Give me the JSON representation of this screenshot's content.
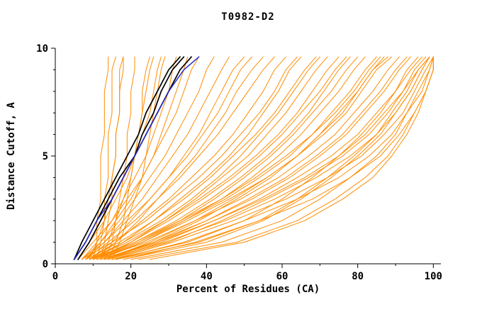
{
  "chart_data": {
    "type": "line",
    "title": "T0982-D2",
    "xlabel": "Percent of Residues (CA)",
    "ylabel": "Distance Cutoff, A",
    "xlim": [
      0,
      100
    ],
    "ylim": [
      0,
      10
    ],
    "x_ticks": [
      0,
      20,
      40,
      60,
      80,
      100
    ],
    "x_minor_step": 10,
    "y_ticks": [
      0,
      5,
      10
    ],
    "y_minor_step": 1,
    "grid": false,
    "legend_position": "none",
    "line_colors": {
      "orange": "#FF8C00",
      "black": "#000000",
      "blue": "#2A2AC8"
    },
    "y_levels": [
      0.2,
      1,
      2,
      3,
      4,
      5,
      6,
      7,
      8,
      9,
      9.6
    ],
    "series": [
      {
        "color": "orange",
        "x": [
          10,
          11,
          11,
          12,
          12,
          12,
          13,
          13,
          13,
          14,
          14
        ]
      },
      {
        "color": "orange",
        "x": [
          11,
          12,
          13,
          13,
          14,
          14,
          14,
          15,
          15,
          15,
          16
        ]
      },
      {
        "color": "orange",
        "x": [
          12,
          13,
          14,
          15,
          15,
          16,
          16,
          17,
          17,
          17,
          18
        ]
      },
      {
        "color": "orange",
        "x": [
          9,
          11,
          13,
          14,
          15,
          16,
          16,
          17,
          17,
          18,
          18
        ]
      },
      {
        "color": "orange",
        "x": [
          13,
          15,
          16,
          17,
          18,
          19,
          19,
          20,
          20,
          21,
          21
        ]
      },
      {
        "color": "orange",
        "x": [
          14,
          16,
          18,
          19,
          20,
          21,
          22,
          23,
          23,
          24,
          25
        ]
      },
      {
        "color": "orange",
        "x": [
          12,
          14,
          16,
          18,
          20,
          21,
          22,
          23,
          24,
          25,
          26
        ]
      },
      {
        "color": "orange",
        "x": [
          15,
          17,
          19,
          21,
          23,
          24,
          25,
          26,
          27,
          28,
          29
        ]
      },
      {
        "color": "orange",
        "x": [
          6,
          9,
          13,
          16,
          19,
          21,
          23,
          25,
          26,
          27,
          28
        ]
      },
      {
        "color": "orange",
        "x": [
          7,
          11,
          15,
          18,
          21,
          24,
          26,
          28,
          30,
          31,
          32
        ]
      },
      {
        "color": "orange",
        "x": [
          8,
          12,
          16,
          20,
          23,
          26,
          28,
          30,
          32,
          34,
          35
        ]
      },
      {
        "color": "orange",
        "x": [
          6,
          10,
          15,
          19,
          23,
          26,
          29,
          32,
          34,
          36,
          38
        ]
      },
      {
        "color": "orange",
        "x": [
          7,
          12,
          17,
          21,
          25,
          29,
          32,
          35,
          38,
          40,
          42
        ]
      },
      {
        "color": "orange",
        "x": [
          8,
          13,
          18,
          23,
          27,
          31,
          35,
          38,
          41,
          44,
          46
        ]
      },
      {
        "color": "orange",
        "x": [
          9,
          15,
          20,
          25,
          30,
          34,
          38,
          41,
          44,
          47,
          50
        ]
      },
      {
        "color": "orange",
        "x": [
          7,
          13,
          19,
          25,
          30,
          35,
          39,
          43,
          46,
          49,
          52
        ]
      },
      {
        "color": "orange",
        "x": [
          10,
          16,
          22,
          27,
          32,
          37,
          41,
          45,
          48,
          52,
          55
        ]
      },
      {
        "color": "orange",
        "x": [
          8,
          14,
          21,
          27,
          33,
          38,
          43,
          47,
          51,
          55,
          58
        ]
      },
      {
        "color": "orange",
        "x": [
          9,
          16,
          23,
          30,
          36,
          42,
          47,
          51,
          55,
          58,
          61
        ]
      },
      {
        "color": "orange",
        "x": [
          10,
          18,
          26,
          33,
          40,
          46,
          51,
          55,
          59,
          62,
          65
        ]
      },
      {
        "color": "orange",
        "x": [
          8,
          17,
          26,
          34,
          41,
          47,
          53,
          58,
          62,
          66,
          69
        ]
      },
      {
        "color": "orange",
        "x": [
          11,
          20,
          29,
          37,
          44,
          51,
          56,
          61,
          65,
          69,
          72
        ]
      },
      {
        "color": "orange",
        "x": [
          9,
          19,
          29,
          38,
          46,
          53,
          59,
          64,
          68,
          72,
          75
        ]
      },
      {
        "color": "orange",
        "x": [
          10,
          21,
          32,
          41,
          49,
          56,
          62,
          67,
          71,
          75,
          78
        ]
      },
      {
        "color": "orange",
        "x": [
          12,
          23,
          34,
          44,
          52,
          59,
          65,
          70,
          75,
          79,
          82
        ]
      },
      {
        "color": "orange",
        "x": [
          10,
          22,
          34,
          45,
          54,
          62,
          68,
          73,
          78,
          82,
          85
        ]
      },
      {
        "color": "orange",
        "x": [
          13,
          25,
          37,
          47,
          56,
          64,
          70,
          76,
          80,
          84,
          88
        ]
      },
      {
        "color": "orange",
        "x": [
          11,
          24,
          37,
          49,
          59,
          67,
          74,
          79,
          84,
          88,
          91
        ]
      },
      {
        "color": "orange",
        "x": [
          12,
          26,
          40,
          52,
          62,
          70,
          77,
          82,
          87,
          91,
          94
        ]
      },
      {
        "color": "orange",
        "x": [
          14,
          28,
          42,
          54,
          64,
          73,
          80,
          85,
          90,
          93,
          96
        ]
      },
      {
        "color": "orange",
        "x": [
          12,
          27,
          42,
          55,
          66,
          75,
          82,
          87,
          92,
          95,
          98
        ]
      },
      {
        "color": "orange",
        "x": [
          13,
          29,
          45,
          58,
          69,
          78,
          85,
          90,
          94,
          97,
          99
        ]
      },
      {
        "color": "orange",
        "x": [
          15,
          31,
          47,
          61,
          72,
          81,
          87,
          92,
          95,
          98,
          100
        ]
      },
      {
        "color": "orange",
        "x": [
          16,
          34,
          50,
          64,
          75,
          83,
          89,
          93,
          97,
          99,
          100
        ]
      },
      {
        "color": "orange",
        "x": [
          18,
          37,
          54,
          68,
          78,
          86,
          91,
          95,
          98,
          100,
          100
        ]
      },
      {
        "color": "orange",
        "x": [
          15,
          35,
          50,
          60,
          68,
          75,
          81,
          86,
          90,
          94,
          97
        ]
      },
      {
        "color": "orange",
        "x": [
          18,
          40,
          55,
          65,
          73,
          80,
          86,
          90,
          94,
          97,
          99
        ]
      },
      {
        "color": "orange",
        "x": [
          20,
          44,
          60,
          70,
          78,
          85,
          90,
          93,
          96,
          99,
          100
        ]
      },
      {
        "color": "orange",
        "x": [
          22,
          48,
          64,
          74,
          82,
          88,
          92,
          95,
          98,
          100,
          100
        ]
      },
      {
        "color": "orange",
        "x": [
          16,
          38,
          54,
          64,
          72,
          79,
          85,
          89,
          93,
          96,
          99
        ]
      },
      {
        "color": "orange",
        "x": [
          25,
          50,
          66,
          76,
          84,
          89,
          93,
          96,
          98,
          100,
          100
        ]
      },
      {
        "color": "orange",
        "x": [
          7,
          15,
          24,
          31,
          38,
          44,
          49,
          54,
          58,
          61,
          64
        ]
      },
      {
        "color": "orange",
        "x": [
          9,
          18,
          28,
          36,
          43,
          49,
          54,
          59,
          63,
          67,
          70
        ]
      },
      {
        "color": "orange",
        "x": [
          11,
          22,
          33,
          42,
          50,
          57,
          63,
          68,
          73,
          77,
          80
        ]
      },
      {
        "color": "orange",
        "x": [
          13,
          26,
          38,
          48,
          57,
          64,
          70,
          75,
          80,
          84,
          87
        ]
      },
      {
        "color": "orange",
        "x": [
          10,
          20,
          30,
          39,
          47,
          54,
          60,
          65,
          70,
          74,
          77
        ]
      },
      {
        "color": "orange",
        "x": [
          11,
          23,
          35,
          46,
          56,
          64,
          71,
          77,
          81,
          85,
          89
        ]
      },
      {
        "color": "orange",
        "x": [
          13,
          27,
          40,
          51,
          61,
          69,
          76,
          81,
          86,
          90,
          93
        ]
      },
      {
        "color": "orange",
        "x": [
          14,
          30,
          44,
          56,
          67,
          76,
          83,
          88,
          92,
          96,
          99
        ]
      },
      {
        "color": "orange",
        "x": [
          9,
          21,
          33,
          44,
          53,
          61,
          68,
          74,
          79,
          83,
          86
        ]
      },
      {
        "color": "black",
        "x": [
          5,
          7,
          10,
          13,
          16,
          19,
          22,
          24,
          27,
          30,
          33
        ]
      },
      {
        "color": "black",
        "x": [
          5,
          8,
          11,
          14,
          17,
          21,
          23,
          26,
          28,
          31,
          34
        ]
      },
      {
        "color": "black",
        "x": [
          6,
          9,
          12,
          15,
          18,
          21,
          24,
          27,
          30,
          33,
          36
        ]
      },
      {
        "color": "blue",
        "x": [
          5,
          8,
          11,
          15,
          18,
          21,
          24,
          27,
          30,
          34,
          38
        ]
      }
    ]
  }
}
